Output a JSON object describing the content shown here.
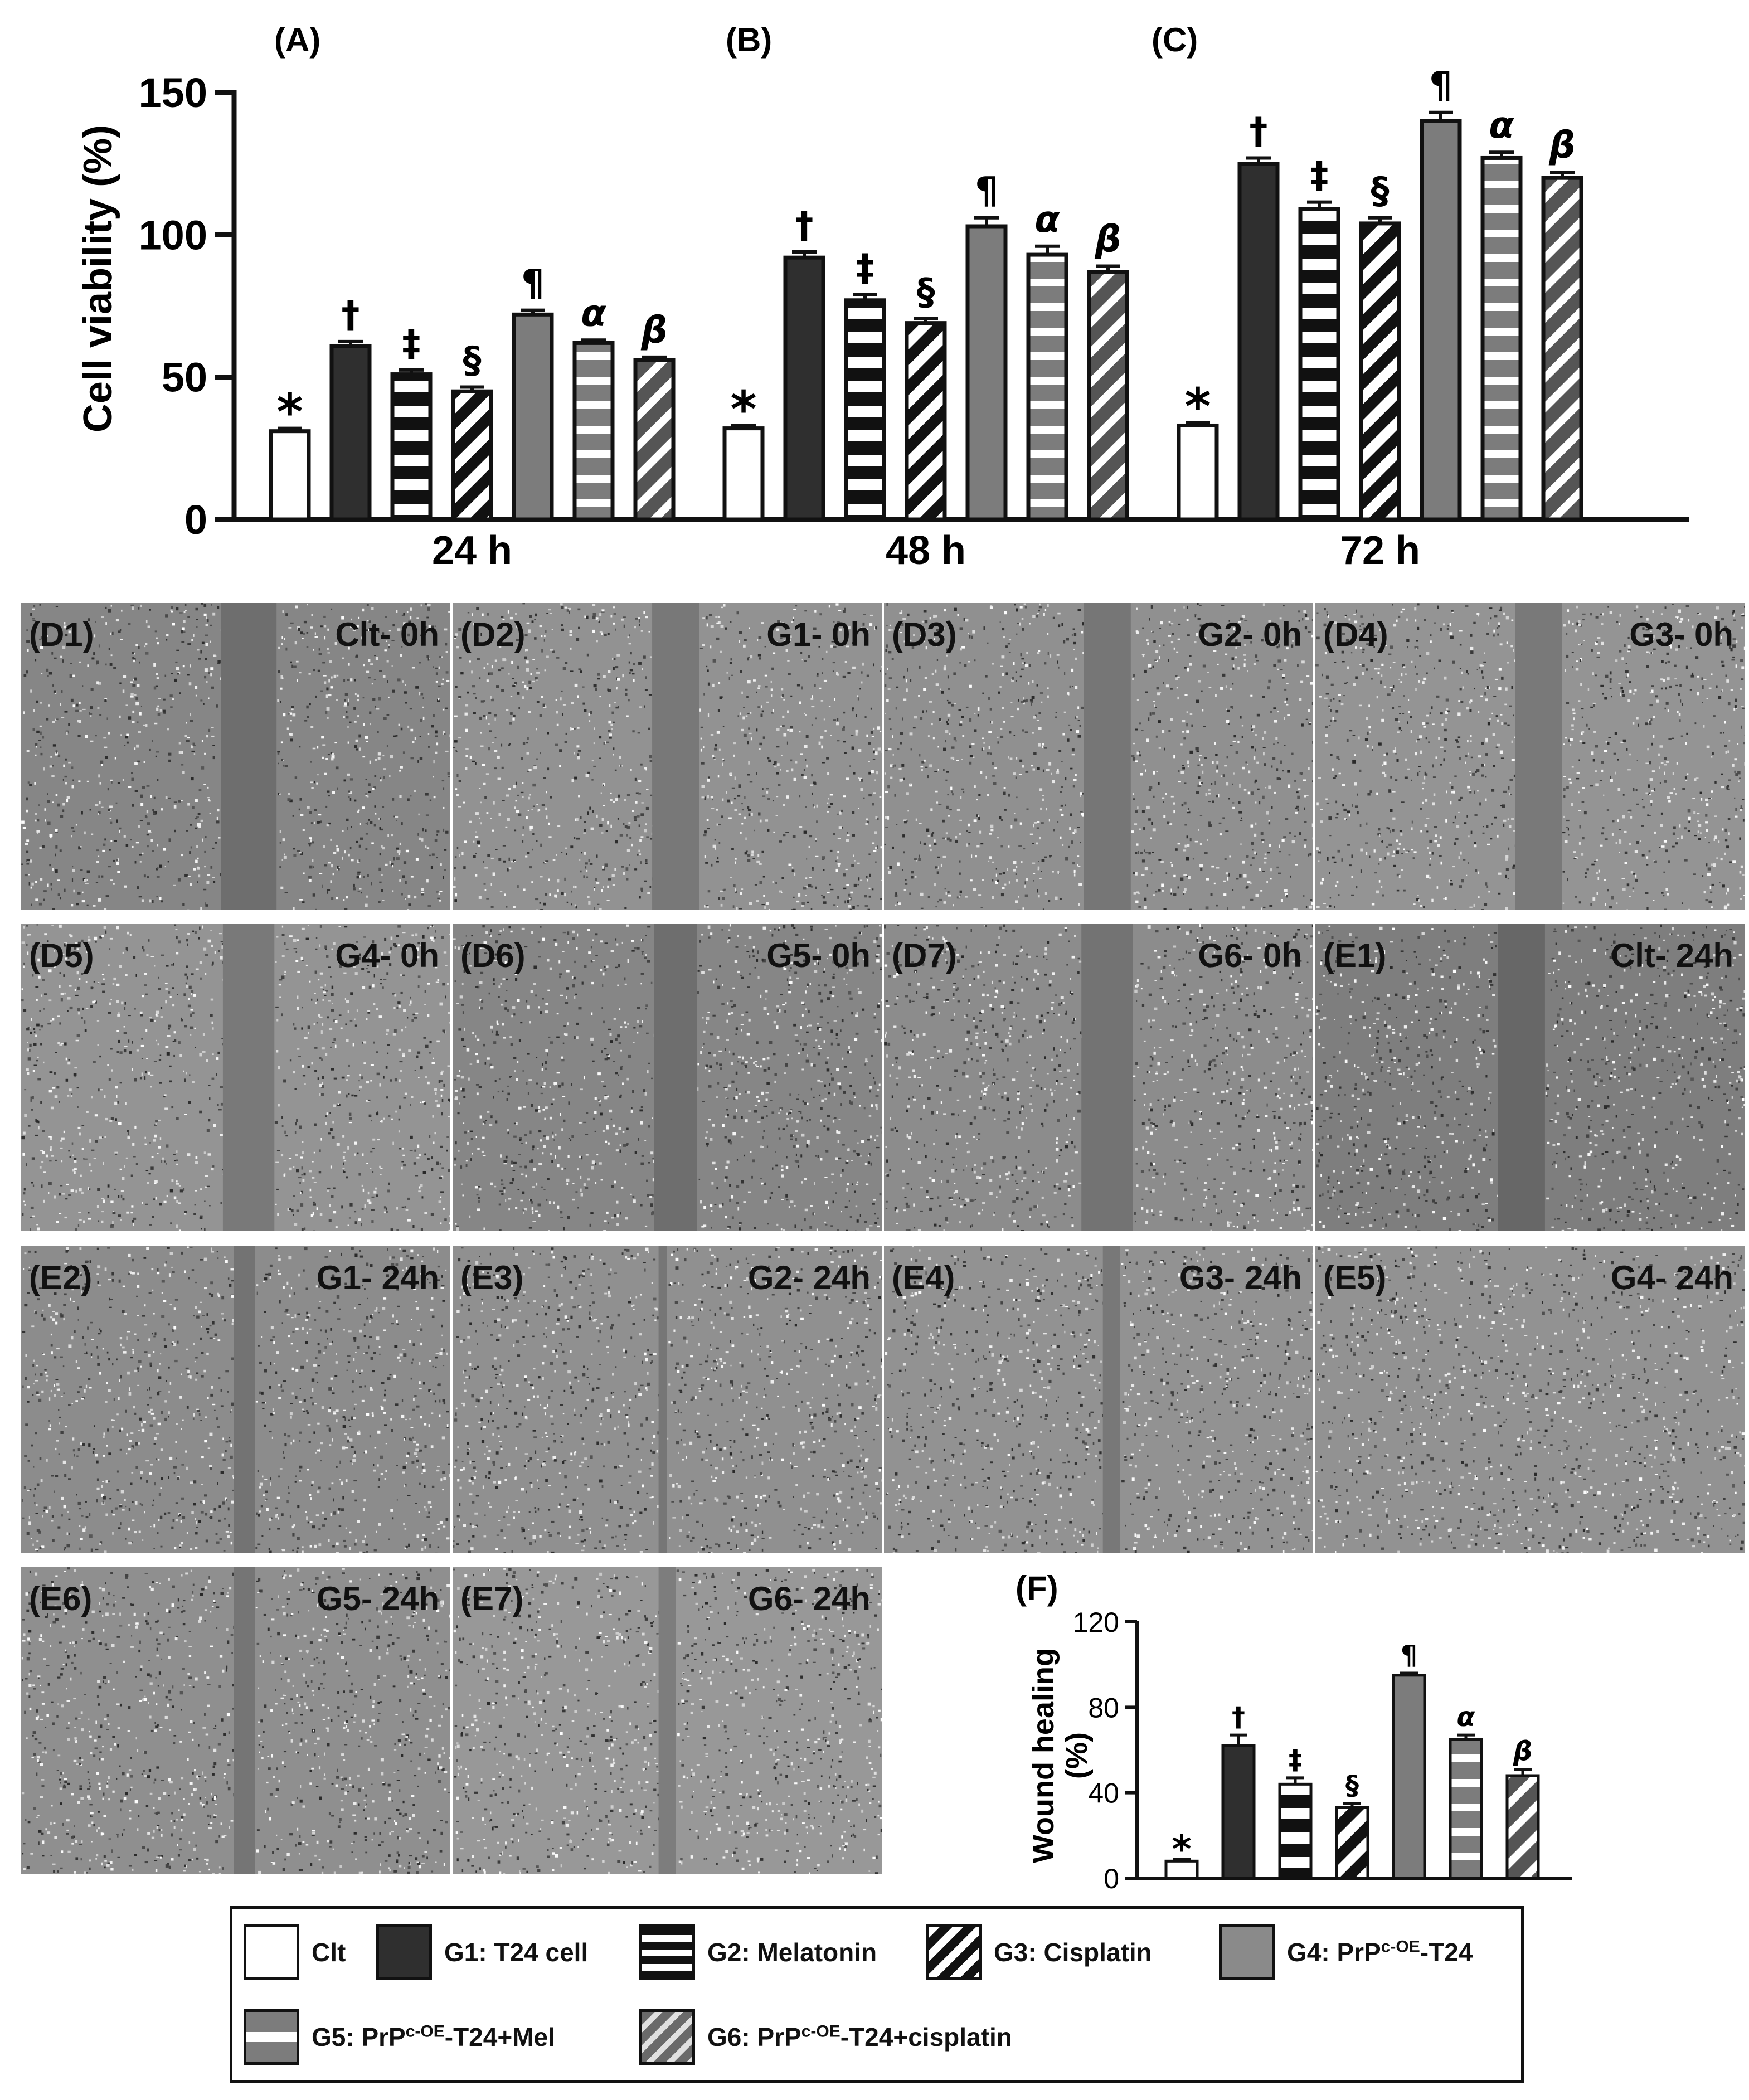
{
  "chart_data": [
    {
      "type": "bar",
      "ylabel": "Cell viability (%)",
      "ylim": [
        0,
        150
      ],
      "yticks": [
        0,
        50,
        100,
        150
      ],
      "panels": [
        {
          "label": "(A)",
          "xlabel": "24 h",
          "values": [
            31,
            61,
            51,
            45,
            72,
            62,
            56
          ],
          "errors": [
            1,
            1.5,
            1.5,
            1.5,
            1.5,
            1,
            1
          ],
          "marks": [
            "*",
            "†",
            "‡",
            "§",
            "¶",
            "α",
            "β"
          ]
        },
        {
          "label": "(B)",
          "xlabel": "48 h",
          "values": [
            32,
            92,
            77,
            69,
            103,
            93,
            87
          ],
          "errors": [
            1,
            2,
            2,
            1.5,
            3,
            3,
            2
          ],
          "marks": [
            "*",
            "†",
            "‡",
            "§",
            "¶",
            "α",
            "β"
          ]
        },
        {
          "label": "(C)",
          "xlabel": "72 h",
          "values": [
            33,
            125,
            109,
            104,
            140,
            127,
            120
          ],
          "errors": [
            1,
            2,
            2.5,
            2,
            3,
            2,
            2
          ],
          "marks": [
            "*",
            "†",
            "‡",
            "§",
            "¶",
            "α",
            "β"
          ]
        }
      ]
    },
    {
      "type": "bar",
      "label": "(F)",
      "ylabel_line1": "Wound healing",
      "ylabel_line2": "(%)",
      "ylim": [
        0,
        120
      ],
      "yticks": [
        0,
        40,
        80,
        120
      ],
      "values": [
        8,
        62,
        44,
        33,
        95,
        65,
        48
      ],
      "errors": [
        1,
        5,
        3,
        2,
        1,
        2,
        3
      ],
      "marks": [
        "*",
        "†",
        "‡",
        "§",
        "¶",
        "α",
        "β"
      ]
    }
  ],
  "groups": [
    {
      "pattern": "white",
      "color": "#ffffff"
    },
    {
      "pattern": "solid",
      "color": "#2f2f2f"
    },
    {
      "pattern": "hstripe",
      "color": "#111111"
    },
    {
      "pattern": "diag",
      "color": "#111111"
    },
    {
      "pattern": "solid",
      "color": "#7c7c7c"
    },
    {
      "pattern": "grey-hstripe",
      "color": "#7c7c7c"
    },
    {
      "pattern": "grey-diag",
      "color": "#555555"
    }
  ],
  "panels": [
    {
      "label": "(D1)",
      "condition": "Clt- 0h",
      "gap_center": 0.53,
      "gap_width": 0.13,
      "tone": 0.55
    },
    {
      "label": "(D2)",
      "condition": "G1- 0h",
      "gap_center": 0.52,
      "gap_width": 0.11,
      "tone": 0.7
    },
    {
      "label": "(D3)",
      "condition": "G2- 0h",
      "gap_center": 0.52,
      "gap_width": 0.11,
      "tone": 0.68
    },
    {
      "label": "(D4)",
      "condition": "G3- 0h",
      "gap_center": 0.52,
      "gap_width": 0.11,
      "tone": 0.72
    },
    {
      "label": "(D5)",
      "condition": "G4- 0h",
      "gap_center": 0.53,
      "gap_width": 0.12,
      "tone": 0.72
    },
    {
      "label": "(D6)",
      "condition": "G5- 0h",
      "gap_center": 0.52,
      "gap_width": 0.1,
      "tone": 0.55
    },
    {
      "label": "(D7)",
      "condition": "G6- 0h",
      "gap_center": 0.52,
      "gap_width": 0.12,
      "tone": 0.62
    },
    {
      "label": "(E1)",
      "condition": "Clt- 24h",
      "gap_center": 0.48,
      "gap_width": 0.11,
      "tone": 0.45
    },
    {
      "label": "(E2)",
      "condition": "G1- 24h",
      "gap_center": 0.52,
      "gap_width": 0.05,
      "tone": 0.62
    },
    {
      "label": "(E3)",
      "condition": "G2- 24h",
      "gap_center": 0.49,
      "gap_width": 0.02,
      "tone": 0.68
    },
    {
      "label": "(E4)",
      "condition": "G3- 24h",
      "gap_center": 0.53,
      "gap_width": 0.04,
      "tone": 0.7
    },
    {
      "label": "(E5)",
      "condition": "G4- 24h",
      "gap_center": 0.5,
      "gap_width": 0.0,
      "tone": 0.7
    },
    {
      "label": "(E6)",
      "condition": "G5- 24h",
      "gap_center": 0.52,
      "gap_width": 0.05,
      "tone": 0.66
    },
    {
      "label": "(E7)",
      "condition": "G6- 24h",
      "gap_center": 0.5,
      "gap_width": 0.04,
      "tone": 0.78
    }
  ],
  "legend": [
    {
      "text": "Clt",
      "sup": "",
      "suffix": ""
    },
    {
      "text": "G1: T24 cell",
      "sup": "",
      "suffix": ""
    },
    {
      "text": "G2: Melatonin",
      "sup": "",
      "suffix": ""
    },
    {
      "text": "G3: Cisplatin",
      "sup": "",
      "suffix": ""
    },
    {
      "text": "G4: PrP",
      "sup": "c-OE",
      "suffix": "-T24"
    },
    {
      "text": "G5: PrP",
      "sup": "c-OE",
      "suffix": "-T24+Mel"
    },
    {
      "text": "G6: PrP",
      "sup": "c-OE",
      "suffix": "-T24+cisplatin"
    }
  ]
}
